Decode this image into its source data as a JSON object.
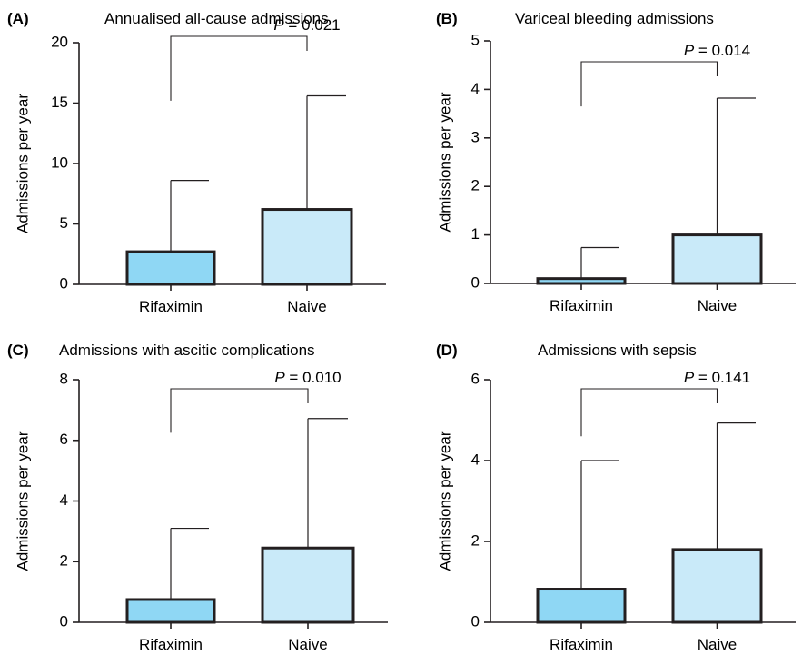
{
  "colors": {
    "rifaximin": "#8fd7f4",
    "naive": "#c9eaf9",
    "stroke": "#231f20"
  },
  "chart_data": [
    {
      "type": "bar",
      "panel": "(A)",
      "title": "Annualised all-cause admissions",
      "ylabel": "Admissions per year",
      "xlabel": "",
      "categories": [
        "Rifaximin",
        "Naive"
      ],
      "values": [
        2.7,
        6.2
      ],
      "error_upper": [
        8.6,
        15.6
      ],
      "ylim": [
        0,
        20
      ],
      "yticks": [
        0,
        5,
        10,
        15,
        20
      ],
      "comparison": {
        "p_label": "P",
        "p_value": "= 0.021"
      }
    },
    {
      "type": "bar",
      "panel": "(B)",
      "title": "Variceal bleeding admissions",
      "ylabel": "Admissions per year",
      "xlabel": "",
      "categories": [
        "Rifaximin",
        "Naive"
      ],
      "values": [
        0.1,
        1.0
      ],
      "error_upper": [
        0.74,
        3.82
      ],
      "ylim": [
        0,
        5
      ],
      "yticks": [
        0,
        1,
        2,
        3,
        4,
        5
      ],
      "comparison": {
        "p_label": "P",
        "p_value": "= 0.014"
      }
    },
    {
      "type": "bar",
      "panel": "(C)",
      "title": "Admissions with ascitic complications",
      "ylabel": "Admissions per year",
      "xlabel": "",
      "categories": [
        "Rifaximin",
        "Naive"
      ],
      "values": [
        0.75,
        2.45
      ],
      "error_upper": [
        3.1,
        6.72
      ],
      "ylim": [
        0,
        8
      ],
      "yticks": [
        0,
        2,
        4,
        6,
        8
      ],
      "comparison": {
        "p_label": "P",
        "p_value": "= 0.010"
      }
    },
    {
      "type": "bar",
      "panel": "(D)",
      "title": "Admissions with sepsis",
      "ylabel": "Admissions per year",
      "xlabel": "",
      "categories": [
        "Rifaximin",
        "Naive"
      ],
      "values": [
        0.82,
        1.8
      ],
      "error_upper": [
        4.0,
        4.93
      ],
      "ylim": [
        0,
        6
      ],
      "yticks": [
        0,
        2,
        4,
        6
      ],
      "comparison": {
        "p_label": "P",
        "p_value": "= 0.141"
      }
    }
  ]
}
